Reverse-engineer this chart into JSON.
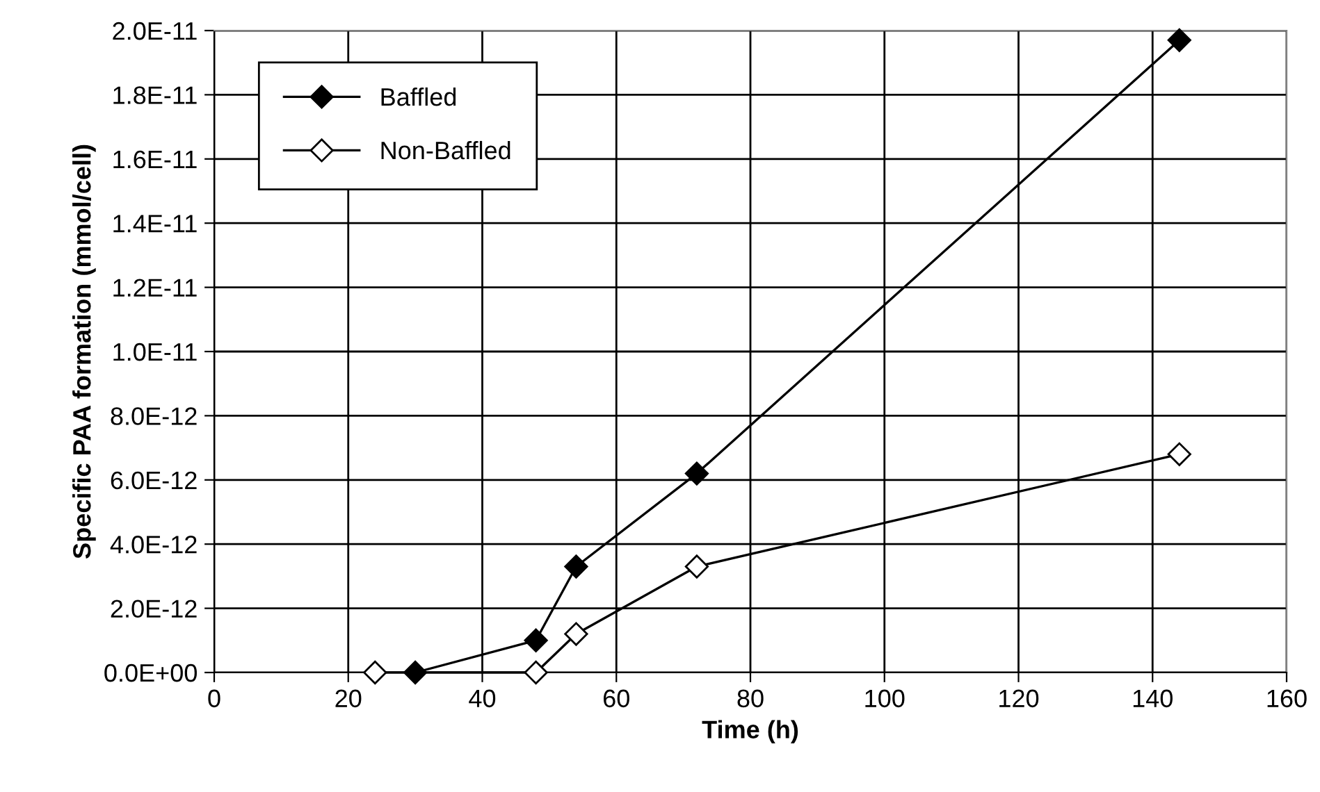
{
  "chart_data": {
    "type": "line",
    "xlabel": "Time (h)",
    "ylabel": "Specific PAA formation (mmol/cell)",
    "series": [
      {
        "name": "Baffled",
        "color": "#000000",
        "x": [
          30,
          48,
          54,
          72,
          144
        ],
        "values": [
          0,
          1e-12,
          3.3e-12,
          6.2e-12,
          1.97e-11
        ]
      },
      {
        "name": "Non-Baffled",
        "color": "#000000",
        "x": [
          24,
          48,
          54,
          72,
          144
        ],
        "values": [
          0,
          0,
          1.2e-12,
          3.3e-12,
          6.8e-12
        ]
      }
    ],
    "xlim": [
      0,
      160
    ],
    "xticks": [
      0,
      20,
      40,
      60,
      80,
      100,
      120,
      140,
      160
    ],
    "ylim": [
      0,
      2e-11
    ],
    "yticks": [
      {
        "value": 0,
        "label": "0.0E+00"
      },
      {
        "value": 2e-12,
        "label": "2.0E-12"
      },
      {
        "value": 4e-12,
        "label": "4.0E-12"
      },
      {
        "value": 6e-12,
        "label": "6.0E-12"
      },
      {
        "value": 8e-12,
        "label": "8.0E-12"
      },
      {
        "value": 1e-11,
        "label": "1.0E-11"
      },
      {
        "value": 1.2e-11,
        "label": "1.2E-11"
      },
      {
        "value": 1.4e-11,
        "label": "1.4E-11"
      },
      {
        "value": 1.6e-11,
        "label": "1.6E-11"
      },
      {
        "value": 1.8e-11,
        "label": "1.8E-11"
      },
      {
        "value": 2e-11,
        "label": "2.0E-11"
      }
    ],
    "grid": true,
    "legend": "top left",
    "marker": "diamond",
    "line_style": "solid"
  }
}
